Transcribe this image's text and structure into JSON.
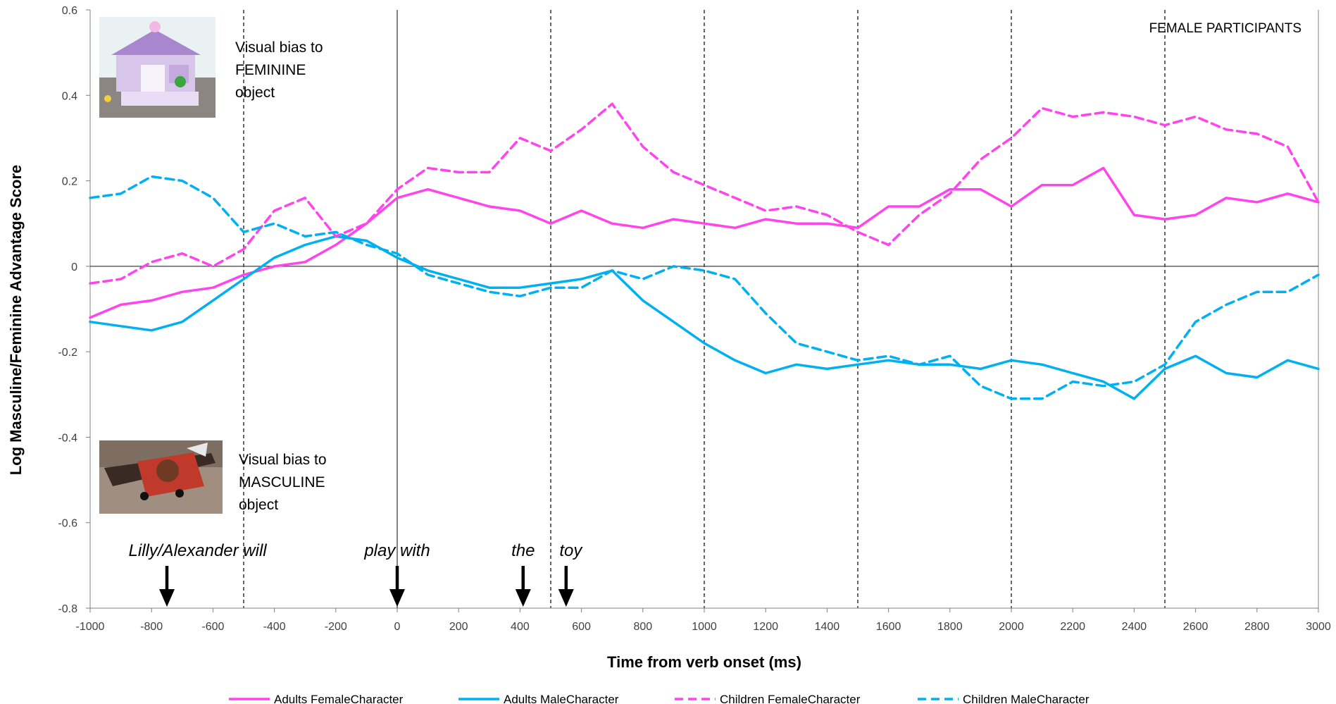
{
  "chart_data": {
    "type": "line",
    "title": "FEMALE PARTICIPANTS",
    "xlabel": "Time from verb onset (ms)",
    "ylabel": "Log Masculine/Feminine Advantage Score",
    "xlim": [
      -1000,
      3000
    ],
    "ylim": [
      -0.8,
      0.6
    ],
    "x_ticks": [
      "-1000",
      "-800",
      "-600",
      "-400",
      "-200",
      "0",
      "200",
      "400",
      "600",
      "800",
      "1000",
      "1200",
      "1400",
      "1600",
      "1800",
      "2000",
      "2200",
      "2400",
      "2600",
      "2800",
      "3000"
    ],
    "y_ticks": [
      "0.6",
      "0.4",
      "0.2",
      "0",
      "-0.2",
      "-0.4",
      "-0.6",
      "-0.8"
    ],
    "grid": false,
    "legend_position": "bottom",
    "reference_lines_ms": [
      -500,
      500,
      1000,
      1500,
      2000,
      2500
    ],
    "annotations": {
      "feminine_bias": [
        "Visual bias to",
        "FEMININE",
        "object"
      ],
      "masculine_bias": [
        "Visual bias to",
        "MASCULINE",
        "object"
      ]
    },
    "words": [
      {
        "text": "Lilly/Alexander will",
        "arrow_at": -750
      },
      {
        "text": "play with",
        "arrow_at": 0
      },
      {
        "text": "the",
        "arrow_at": 410
      },
      {
        "text": "toy",
        "arrow_at": 550
      }
    ],
    "x": [
      -1000,
      -900,
      -800,
      -700,
      -600,
      -500,
      -400,
      -300,
      -200,
      -100,
      0,
      100,
      200,
      300,
      400,
      500,
      600,
      700,
      800,
      900,
      1000,
      1100,
      1200,
      1300,
      1400,
      1500,
      1600,
      1700,
      1800,
      1900,
      2000,
      2100,
      2200,
      2300,
      2400,
      2500,
      2600,
      2700,
      2800,
      2900,
      3000
    ],
    "series": [
      {
        "name": "Adults FemaleCharacter",
        "color": "#ff44ee",
        "dash": false,
        "values": [
          -0.12,
          -0.09,
          -0.08,
          -0.06,
          -0.05,
          -0.02,
          0.0,
          0.01,
          0.05,
          0.1,
          0.16,
          0.18,
          0.16,
          0.14,
          0.13,
          0.1,
          0.13,
          0.1,
          0.09,
          0.11,
          0.1,
          0.09,
          0.11,
          0.1,
          0.1,
          0.09,
          0.14,
          0.14,
          0.18,
          0.18,
          0.14,
          0.19,
          0.19,
          0.23,
          0.12,
          0.11,
          0.12,
          0.16,
          0.15,
          0.17,
          0.15
        ]
      },
      {
        "name": "Adults MaleCharacter",
        "color": "#00b0f0",
        "dash": false,
        "values": [
          -0.13,
          -0.14,
          -0.15,
          -0.13,
          -0.08,
          -0.03,
          0.02,
          0.05,
          0.07,
          0.06,
          0.02,
          -0.01,
          -0.03,
          -0.05,
          -0.05,
          -0.04,
          -0.03,
          -0.01,
          -0.08,
          -0.13,
          -0.18,
          -0.22,
          -0.25,
          -0.23,
          -0.24,
          -0.23,
          -0.22,
          -0.23,
          -0.23,
          -0.24,
          -0.22,
          -0.23,
          -0.25,
          -0.27,
          -0.31,
          -0.24,
          -0.21,
          -0.25,
          -0.26,
          -0.22,
          -0.24
        ]
      },
      {
        "name": "Children FemaleCharacter",
        "color": "#ff44ee",
        "dash": true,
        "values": [
          -0.04,
          -0.03,
          0.01,
          0.03,
          0.0,
          0.04,
          0.13,
          0.16,
          0.07,
          0.1,
          0.18,
          0.23,
          0.22,
          0.22,
          0.3,
          0.27,
          0.32,
          0.38,
          0.28,
          0.22,
          0.19,
          0.16,
          0.13,
          0.14,
          0.12,
          0.08,
          0.05,
          0.12,
          0.17,
          0.25,
          0.3,
          0.37,
          0.35,
          0.36,
          0.35,
          0.33,
          0.35,
          0.32,
          0.31,
          0.28,
          0.15
        ]
      },
      {
        "name": "Children MaleCharacter",
        "color": "#00b0f0",
        "dash": true,
        "values": [
          0.16,
          0.17,
          0.21,
          0.2,
          0.16,
          0.08,
          0.1,
          0.07,
          0.08,
          0.05,
          0.03,
          -0.02,
          -0.04,
          -0.06,
          -0.07,
          -0.05,
          -0.05,
          -0.01,
          -0.03,
          0.0,
          -0.01,
          -0.03,
          -0.11,
          -0.18,
          -0.2,
          -0.22,
          -0.21,
          -0.23,
          -0.21,
          -0.28,
          -0.31,
          -0.31,
          -0.27,
          -0.28,
          -0.27,
          -0.23,
          -0.13,
          -0.09,
          -0.06,
          -0.06,
          -0.02
        ]
      }
    ]
  }
}
